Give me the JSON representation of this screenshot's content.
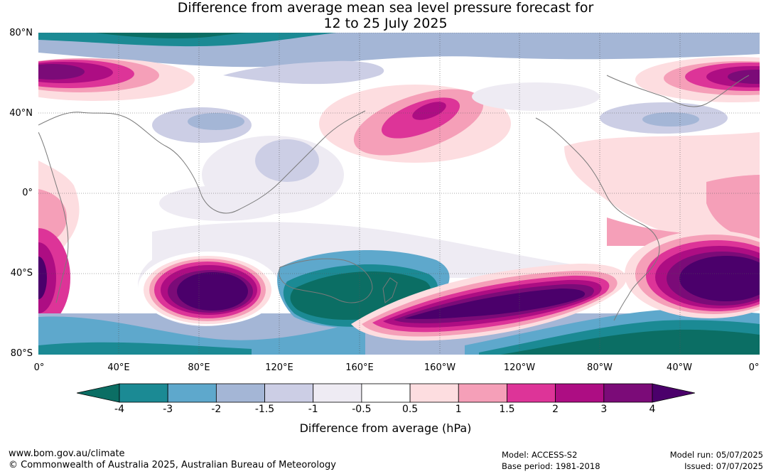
{
  "title": {
    "line1": "Difference from average mean sea level pressure forecast for",
    "line2": "12 to 25 July 2025"
  },
  "lat_labels": [
    "80°N",
    "40°N",
    "0°",
    "40°S",
    "80°S"
  ],
  "lon_labels": [
    "0°",
    "40°E",
    "80°E",
    "120°E",
    "160°E",
    "160°W",
    "120°W",
    "80°W",
    "40°W",
    "0°"
  ],
  "colorbar": {
    "ticks": [
      "-4",
      "-3",
      "-2",
      "-1.5",
      "-1",
      "-0.5",
      "0.5",
      "1",
      "1.5",
      "2",
      "3",
      "4"
    ],
    "colors": [
      "#0b6e64",
      "#1b8a94",
      "#5ea8cc",
      "#a4b6d6",
      "#cccee5",
      "#eeebf3",
      "#ffffff",
      "#fddde0",
      "#f59fb8",
      "#dd3498",
      "#ad0d83",
      "#7b0b78",
      "#4b006b"
    ],
    "label": "Difference from average (hPa)"
  },
  "footer": {
    "url": "www.bom.gov.au/climate",
    "copyright": "© Commonwealth of Australia 2025, Australian Bureau of Meteorology",
    "model": "Model: ACCESS-S2",
    "base_period": "Base period: 1981-2018",
    "model_run": "Model run: 05/07/2025",
    "issued": "Issued: 07/07/2025"
  }
}
